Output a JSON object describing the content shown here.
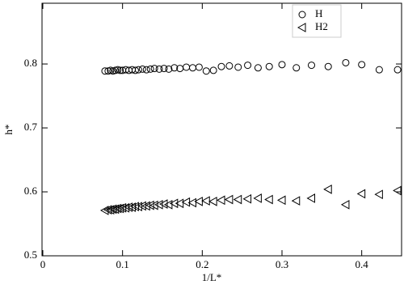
{
  "chart_data": {
    "type": "scatter",
    "x_label": "1/L*",
    "y_label": "h*",
    "xlim": [
      0,
      0.45
    ],
    "ylim": [
      0.5,
      0.895
    ],
    "xticks": [
      0,
      0.1,
      0.2,
      0.3,
      0.4
    ],
    "yticks": [
      0.5,
      0.6,
      0.7,
      0.8
    ],
    "legend": "upper right",
    "series": [
      {
        "name": "H",
        "color": "#000000",
        "marker": "circle",
        "x": [
          0.078,
          0.082,
          0.085,
          0.088,
          0.091,
          0.094,
          0.097,
          0.1,
          0.104,
          0.108,
          0.112,
          0.116,
          0.12,
          0.125,
          0.13,
          0.135,
          0.14,
          0.146,
          0.152,
          0.158,
          0.165,
          0.172,
          0.18,
          0.188,
          0.196,
          0.205,
          0.214,
          0.224,
          0.234,
          0.245,
          0.257,
          0.27,
          0.284,
          0.3,
          0.318,
          0.337,
          0.358,
          0.38,
          0.4,
          0.422,
          0.445
        ],
        "values": [
          0.789,
          0.789,
          0.79,
          0.789,
          0.79,
          0.791,
          0.79,
          0.79,
          0.791,
          0.79,
          0.791,
          0.79,
          0.791,
          0.792,
          0.791,
          0.792,
          0.793,
          0.792,
          0.793,
          0.792,
          0.794,
          0.793,
          0.795,
          0.794,
          0.795,
          0.789,
          0.79,
          0.796,
          0.797,
          0.795,
          0.798,
          0.794,
          0.796,
          0.799,
          0.794,
          0.798,
          0.796,
          0.802,
          0.799,
          0.791,
          0.791
        ]
      },
      {
        "name": "H2",
        "color": "#000000",
        "marker": "triangle-left",
        "x": [
          0.078,
          0.082,
          0.085,
          0.088,
          0.091,
          0.094,
          0.097,
          0.1,
          0.104,
          0.108,
          0.112,
          0.116,
          0.12,
          0.125,
          0.13,
          0.135,
          0.14,
          0.146,
          0.152,
          0.158,
          0.165,
          0.172,
          0.18,
          0.188,
          0.196,
          0.205,
          0.214,
          0.224,
          0.234,
          0.245,
          0.257,
          0.27,
          0.284,
          0.3,
          0.318,
          0.337,
          0.358,
          0.38,
          0.4,
          0.422,
          0.445
        ],
        "values": [
          0.571,
          0.572,
          0.572,
          0.573,
          0.573,
          0.574,
          0.574,
          0.575,
          0.575,
          0.576,
          0.576,
          0.577,
          0.577,
          0.578,
          0.578,
          0.579,
          0.579,
          0.58,
          0.581,
          0.58,
          0.582,
          0.582,
          0.584,
          0.583,
          0.585,
          0.586,
          0.585,
          0.587,
          0.588,
          0.588,
          0.589,
          0.59,
          0.588,
          0.587,
          0.586,
          0.59,
          0.604,
          0.58,
          0.597,
          0.596,
          0.602
        ]
      }
    ]
  }
}
